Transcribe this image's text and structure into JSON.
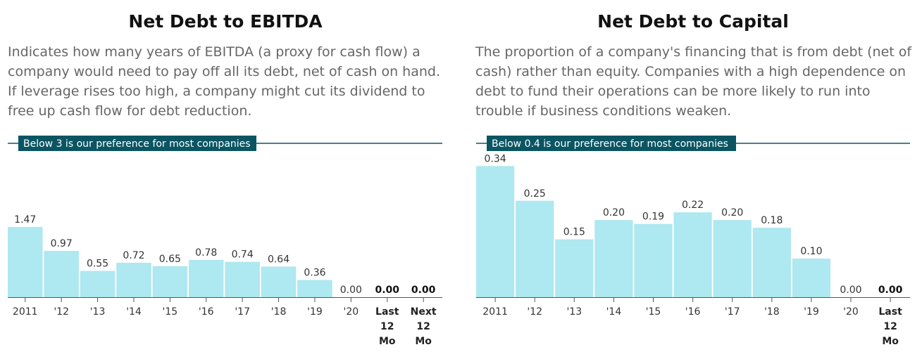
{
  "colors": {
    "bar": "#aee8f0",
    "accent": "#0b5563",
    "axis": "#555555"
  },
  "chart_data": [
    {
      "type": "bar",
      "title": "Net Debt to EBITDA",
      "description": "Indicates how many years of EBITDA (a proxy for cash flow) a company would need to pay off all its debt, net of cash on hand. If leverage rises too high, a company might cut its dividend to free up cash flow for debt reduction.",
      "reference_line": {
        "value": 3,
        "label": "Below 3 is our preference for most companies"
      },
      "categories": [
        "2011",
        "'12",
        "'13",
        "'14",
        "'15",
        "'16",
        "'17",
        "'18",
        "'19",
        "'20",
        "Last 12 Mo",
        "Next 12 Mo"
      ],
      "values": [
        1.47,
        0.97,
        0.55,
        0.72,
        0.65,
        0.78,
        0.74,
        0.64,
        0.36,
        0.0,
        0.0,
        0.0
      ],
      "value_labels": [
        "1.47",
        "0.97",
        "0.55",
        "0.72",
        "0.65",
        "0.78",
        "0.74",
        "0.64",
        "0.36",
        "0.00",
        "0.00",
        "0.00"
      ]
    },
    {
      "type": "bar",
      "title": "Net Debt to Capital",
      "description": "The proportion of a company's financing that is from debt (net of cash) rather than equity. Companies with a high dependence on debt to fund their operations can be more likely to run into trouble if business conditions weaken.",
      "reference_line": {
        "value": 0.4,
        "label": "Below 0.4 is our preference for most companies"
      },
      "categories": [
        "2011",
        "'12",
        "'13",
        "'14",
        "'15",
        "'16",
        "'17",
        "'18",
        "'19",
        "'20",
        "Last 12 Mo"
      ],
      "values": [
        0.34,
        0.25,
        0.15,
        0.2,
        0.19,
        0.22,
        0.2,
        0.18,
        0.1,
        0.0,
        0.0
      ],
      "value_labels": [
        "0.34",
        "0.25",
        "0.15",
        "0.20",
        "0.19",
        "0.22",
        "0.20",
        "0.18",
        "0.10",
        "0.00",
        "0.00"
      ]
    }
  ]
}
